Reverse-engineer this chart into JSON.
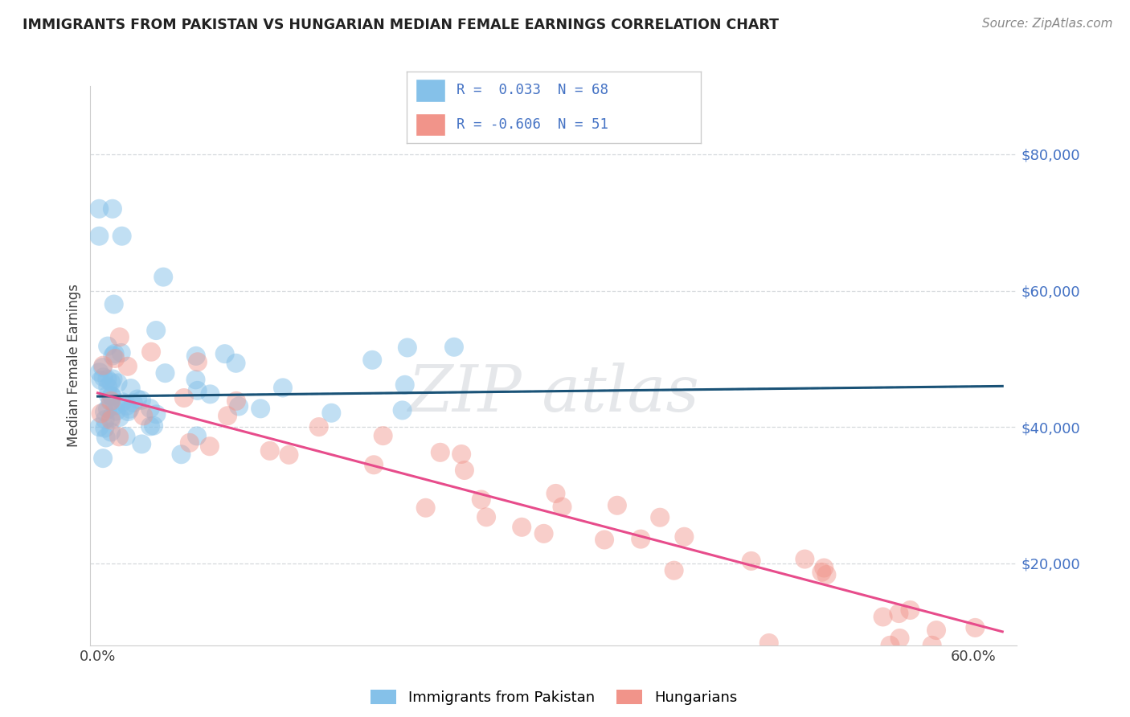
{
  "title": "IMMIGRANTS FROM PAKISTAN VS HUNGARIAN MEDIAN FEMALE EARNINGS CORRELATION CHART",
  "source": "Source: ZipAtlas.com",
  "ylabel": "Median Female Earnings",
  "y_tick_labels": [
    "$20,000",
    "$40,000",
    "$60,000",
    "$80,000"
  ],
  "y_tick_values": [
    20000,
    40000,
    60000,
    80000
  ],
  "ylim": [
    8000,
    90000
  ],
  "xlim": [
    -0.5,
    63
  ],
  "legend_r1_text": "R =  0.033  N = 68",
  "legend_r2_text": "R = -0.606  N = 51",
  "blue_scatter_color": "#85c1e9",
  "pink_scatter_color": "#f1948a",
  "blue_line_color": "#1a5276",
  "pink_line_color": "#e74c8b",
  "dashed_line_color": "#85c1e9",
  "grid_color": "#d5d8dc",
  "background_color": "#ffffff",
  "watermark_color": "#d5d8dc",
  "label_color": "#4472c4",
  "title_color": "#222222",
  "source_color": "#888888"
}
